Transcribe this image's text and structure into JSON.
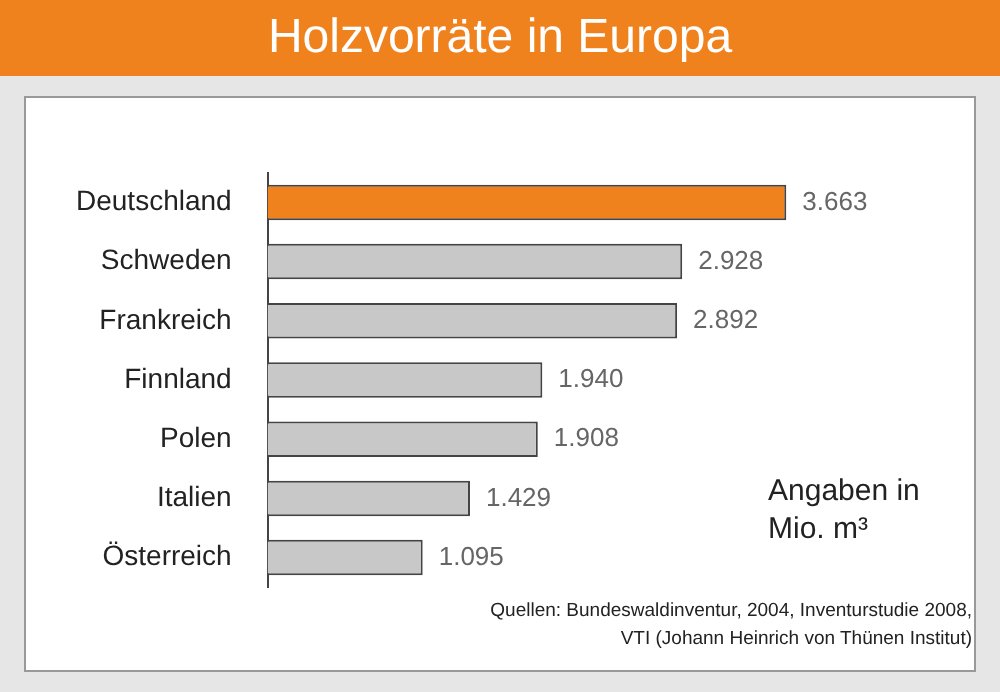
{
  "chart_data": {
    "type": "bar",
    "orientation": "horizontal",
    "title": "Holzvorräte in Europa",
    "categories": [
      "Deutschland",
      "Schweden",
      "Frankreich",
      "Finnland",
      "Polen",
      "Italien",
      "Österreich"
    ],
    "values": [
      3663,
      2928,
      2892,
      1940,
      1908,
      1429,
      1095
    ],
    "value_labels": [
      "3.663",
      "2.928",
      "2.892",
      "1.940",
      "1.908",
      "1.429",
      "1.095"
    ],
    "colors": [
      "#f0821e",
      "#c8c8c8",
      "#c8c8c8",
      "#c8c8c8",
      "#c8c8c8",
      "#c8c8c8",
      "#c8c8c8"
    ],
    "tick_labels": "y",
    "legend": false,
    "annotations": [
      "Angaben in Mio. m³",
      "Quellen: Bundeswaldinventur, 2004, Inventurstudie 2008, VTI (Johann Heinrich von Thünen Institut)"
    ]
  }
}
